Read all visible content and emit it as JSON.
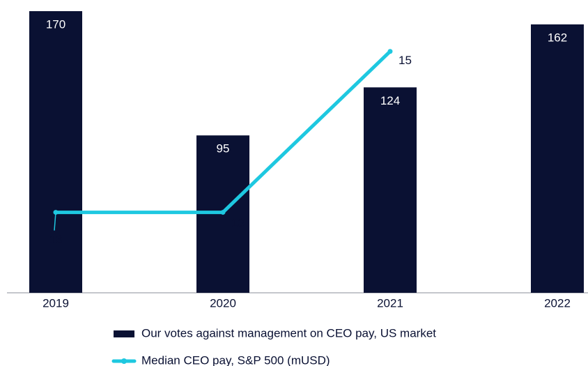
{
  "chart_data": {
    "type": "bar",
    "categories": [
      "2019",
      "2020",
      "2021",
      "2022"
    ],
    "series": [
      {
        "name": "Our votes against management on CEO pay, US market",
        "color": "#0a1133",
        "type": "bar",
        "values": [
          170,
          95,
          124,
          162
        ]
      },
      {
        "name": "Median CEO pay, S&P 500 (mUSD)",
        "color": "#1ec8e0",
        "type": "line",
        "axis": "y2",
        "values": [
          13,
          13,
          15,
          null
        ]
      }
    ],
    "ylim": [
      0,
      170
    ],
    "y2lim": [
      12,
      15.5
    ]
  }
}
